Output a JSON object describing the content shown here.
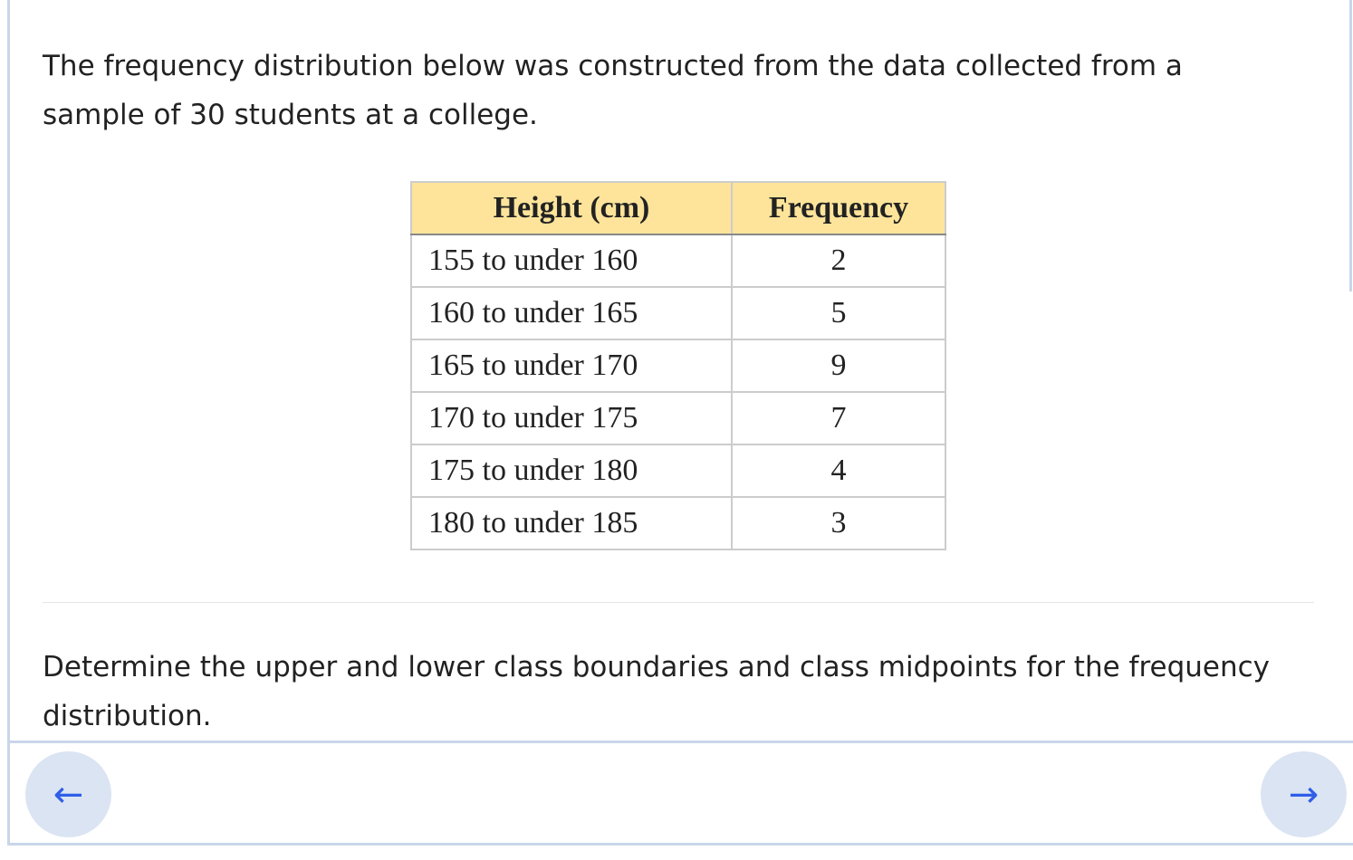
{
  "question": {
    "intro": "The frequency distribution below was constructed from the data collected from a sample of 30 students at a college.",
    "instruction": "Determine the upper and lower class boundaries and class midpoints for the frequency distribution."
  },
  "table": {
    "header": [
      "Height (cm)",
      "Frequency"
    ],
    "rows": [
      [
        "155 to under 160",
        2
      ],
      [
        "160 to under 165",
        5
      ],
      [
        "165 to under 170",
        9
      ],
      [
        "170 to under 175",
        7
      ],
      [
        "175 to under 180",
        4
      ],
      [
        "180 to under 185",
        3
      ]
    ]
  },
  "navigation": {
    "previous": "←",
    "next": "→"
  }
}
